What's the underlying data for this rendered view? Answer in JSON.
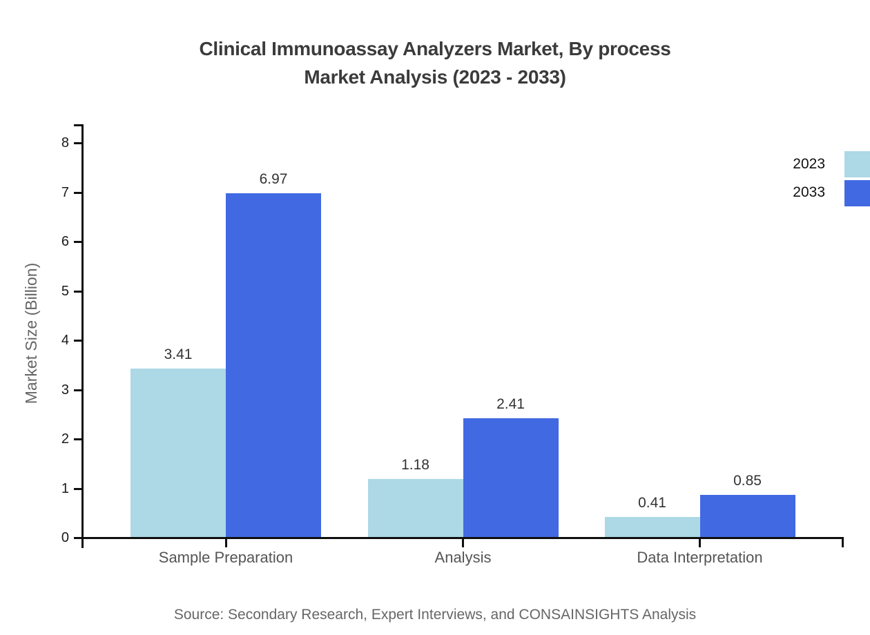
{
  "title": {
    "line1": "Clinical Immunoassay Analyzers Market, By process",
    "line2": "Market Analysis (2023 - 2033)"
  },
  "y_axis": {
    "label": "Market Size (Billion)",
    "ticks": [
      0,
      1,
      2,
      3,
      4,
      5,
      6,
      7,
      8
    ]
  },
  "legend": [
    {
      "label": "2023",
      "color": "#ADD8E6"
    },
    {
      "label": "2033",
      "color": "#4169E1"
    }
  ],
  "source": "Source: Secondary Research, Expert Interviews, and CONSAINSIGHTS Analysis",
  "chart_data": {
    "type": "bar",
    "title": "Clinical Immunoassay Analyzers Market, By process Market Analysis (2023 - 2033)",
    "categories": [
      "Sample Preparation",
      "Analysis",
      "Data Interpretation"
    ],
    "series": [
      {
        "name": "2023",
        "color": "#ADD8E6",
        "values": [
          3.41,
          1.18,
          0.41
        ]
      },
      {
        "name": "2033",
        "color": "#4169E1",
        "values": [
          6.97,
          2.41,
          0.85
        ]
      }
    ],
    "xlabel": "",
    "ylabel": "Market Size (Billion)",
    "ylim": [
      0,
      8
    ],
    "grid": false,
    "value_labels": true,
    "legend_position": "upper right"
  }
}
